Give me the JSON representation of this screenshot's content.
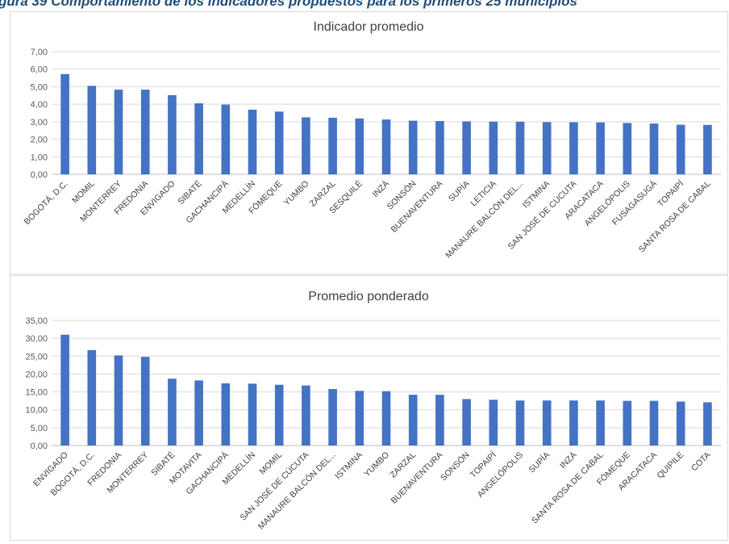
{
  "caption": "gura 39 Comportamiento de los indicadores propuestos para los primeros 25 municipios",
  "chart_data": [
    {
      "type": "bar",
      "title": "Indicador promedio",
      "ylim": [
        0,
        7
      ],
      "yticks": [
        "0,00",
        "1,00",
        "2,00",
        "3,00",
        "4,00",
        "5,00",
        "6,00",
        "7,00"
      ],
      "grid": true,
      "legend": "none",
      "color": "#4472c4",
      "categories": [
        "BOGOTÁ, D.C.",
        "MOMIL",
        "MONTERREY",
        "FREDONIA",
        "ENVIGADO",
        "SIBATÉ",
        "GACHANCIPÁ",
        "MEDELLÍN",
        "FÓMEQUE",
        "YUMBO",
        "ZARZAL",
        "SESQUILÉ",
        "INZÁ",
        "SONSÓN",
        "BUENAVENTURA",
        "SUPÍA",
        "LETICIA",
        "MANAURE BALCÓN DEL...",
        "ISTMINA",
        "SAN JOSÉ DE CÚCUTA",
        "ARACATACA",
        "ANGELÓPOLIS",
        "FUSAGASUGÁ",
        "TOPAIPÍ",
        "SANTA ROSA DE CABAL"
      ],
      "values": [
        5.72,
        5.05,
        4.83,
        4.83,
        4.52,
        4.05,
        3.98,
        3.69,
        3.58,
        3.25,
        3.23,
        3.19,
        3.13,
        3.06,
        3.04,
        3.02,
        3.01,
        3.0,
        2.98,
        2.97,
        2.96,
        2.93,
        2.9,
        2.83,
        2.82
      ]
    },
    {
      "type": "bar",
      "title": "Promedio ponderado",
      "ylim": [
        0,
        35
      ],
      "yticks": [
        "0,00",
        "5,00",
        "10,00",
        "15,00",
        "20,00",
        "25,00",
        "30,00",
        "35,00"
      ],
      "grid": true,
      "legend": "none",
      "color": "#4472c4",
      "categories": [
        "ENVIGADO",
        "BOGOTÁ, D.C.",
        "FREDONIA",
        "MONTERREY",
        "SIBATÉ",
        "MOTAVITA",
        "GACHANCIPÁ",
        "MEDELLÍN",
        "MOMIL",
        "SAN JOSÉ DE CÚCUTA",
        "MANAURE BALCÓN DEL...",
        "ISTMINA",
        "YUMBO",
        "ZARZAL",
        "BUENAVENTURA",
        "SONSÓN",
        "TOPAIPÍ",
        "ANGELÓPOLIS",
        "SUPÍA",
        "INZÁ",
        "SANTA ROSA DE CABAL",
        "FÓMEQUE",
        "ARACATACA",
        "QUIPILE",
        "COTA"
      ],
      "values": [
        31.0,
        26.7,
        25.2,
        24.8,
        18.7,
        18.2,
        17.4,
        17.3,
        17.0,
        16.8,
        15.8,
        15.3,
        15.2,
        14.2,
        14.2,
        13.0,
        12.8,
        12.6,
        12.6,
        12.6,
        12.6,
        12.5,
        12.5,
        12.3,
        12.1
      ]
    }
  ]
}
